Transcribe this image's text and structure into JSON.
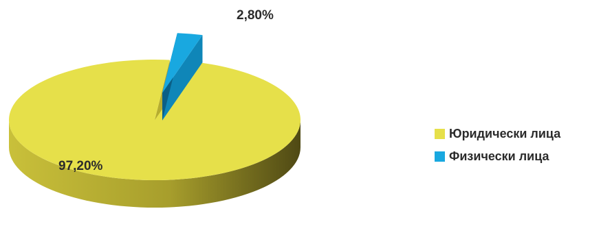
{
  "chart_data": {
    "type": "pie",
    "title": "",
    "slices": [
      {
        "label": "Юридически лица",
        "value": 97.2,
        "display": "97,20%",
        "color": "#e6e04a",
        "side_color": "#b6ad2f",
        "shadow_color": "#5c5518"
      },
      {
        "label": "Физически лица",
        "value": 2.8,
        "display": "2,80%",
        "color": "#19a8e0",
        "side_color": "#0f86b8",
        "shadow_color": "#0b5f86"
      }
    ],
    "exploded_slice": "Физически лица",
    "style": "3d",
    "legend_position": "right"
  },
  "legend": {
    "items": [
      {
        "label": "Юридически лица",
        "color": "#e6e04a"
      },
      {
        "label": "Физически лица",
        "color": "#19a8e0"
      }
    ]
  }
}
